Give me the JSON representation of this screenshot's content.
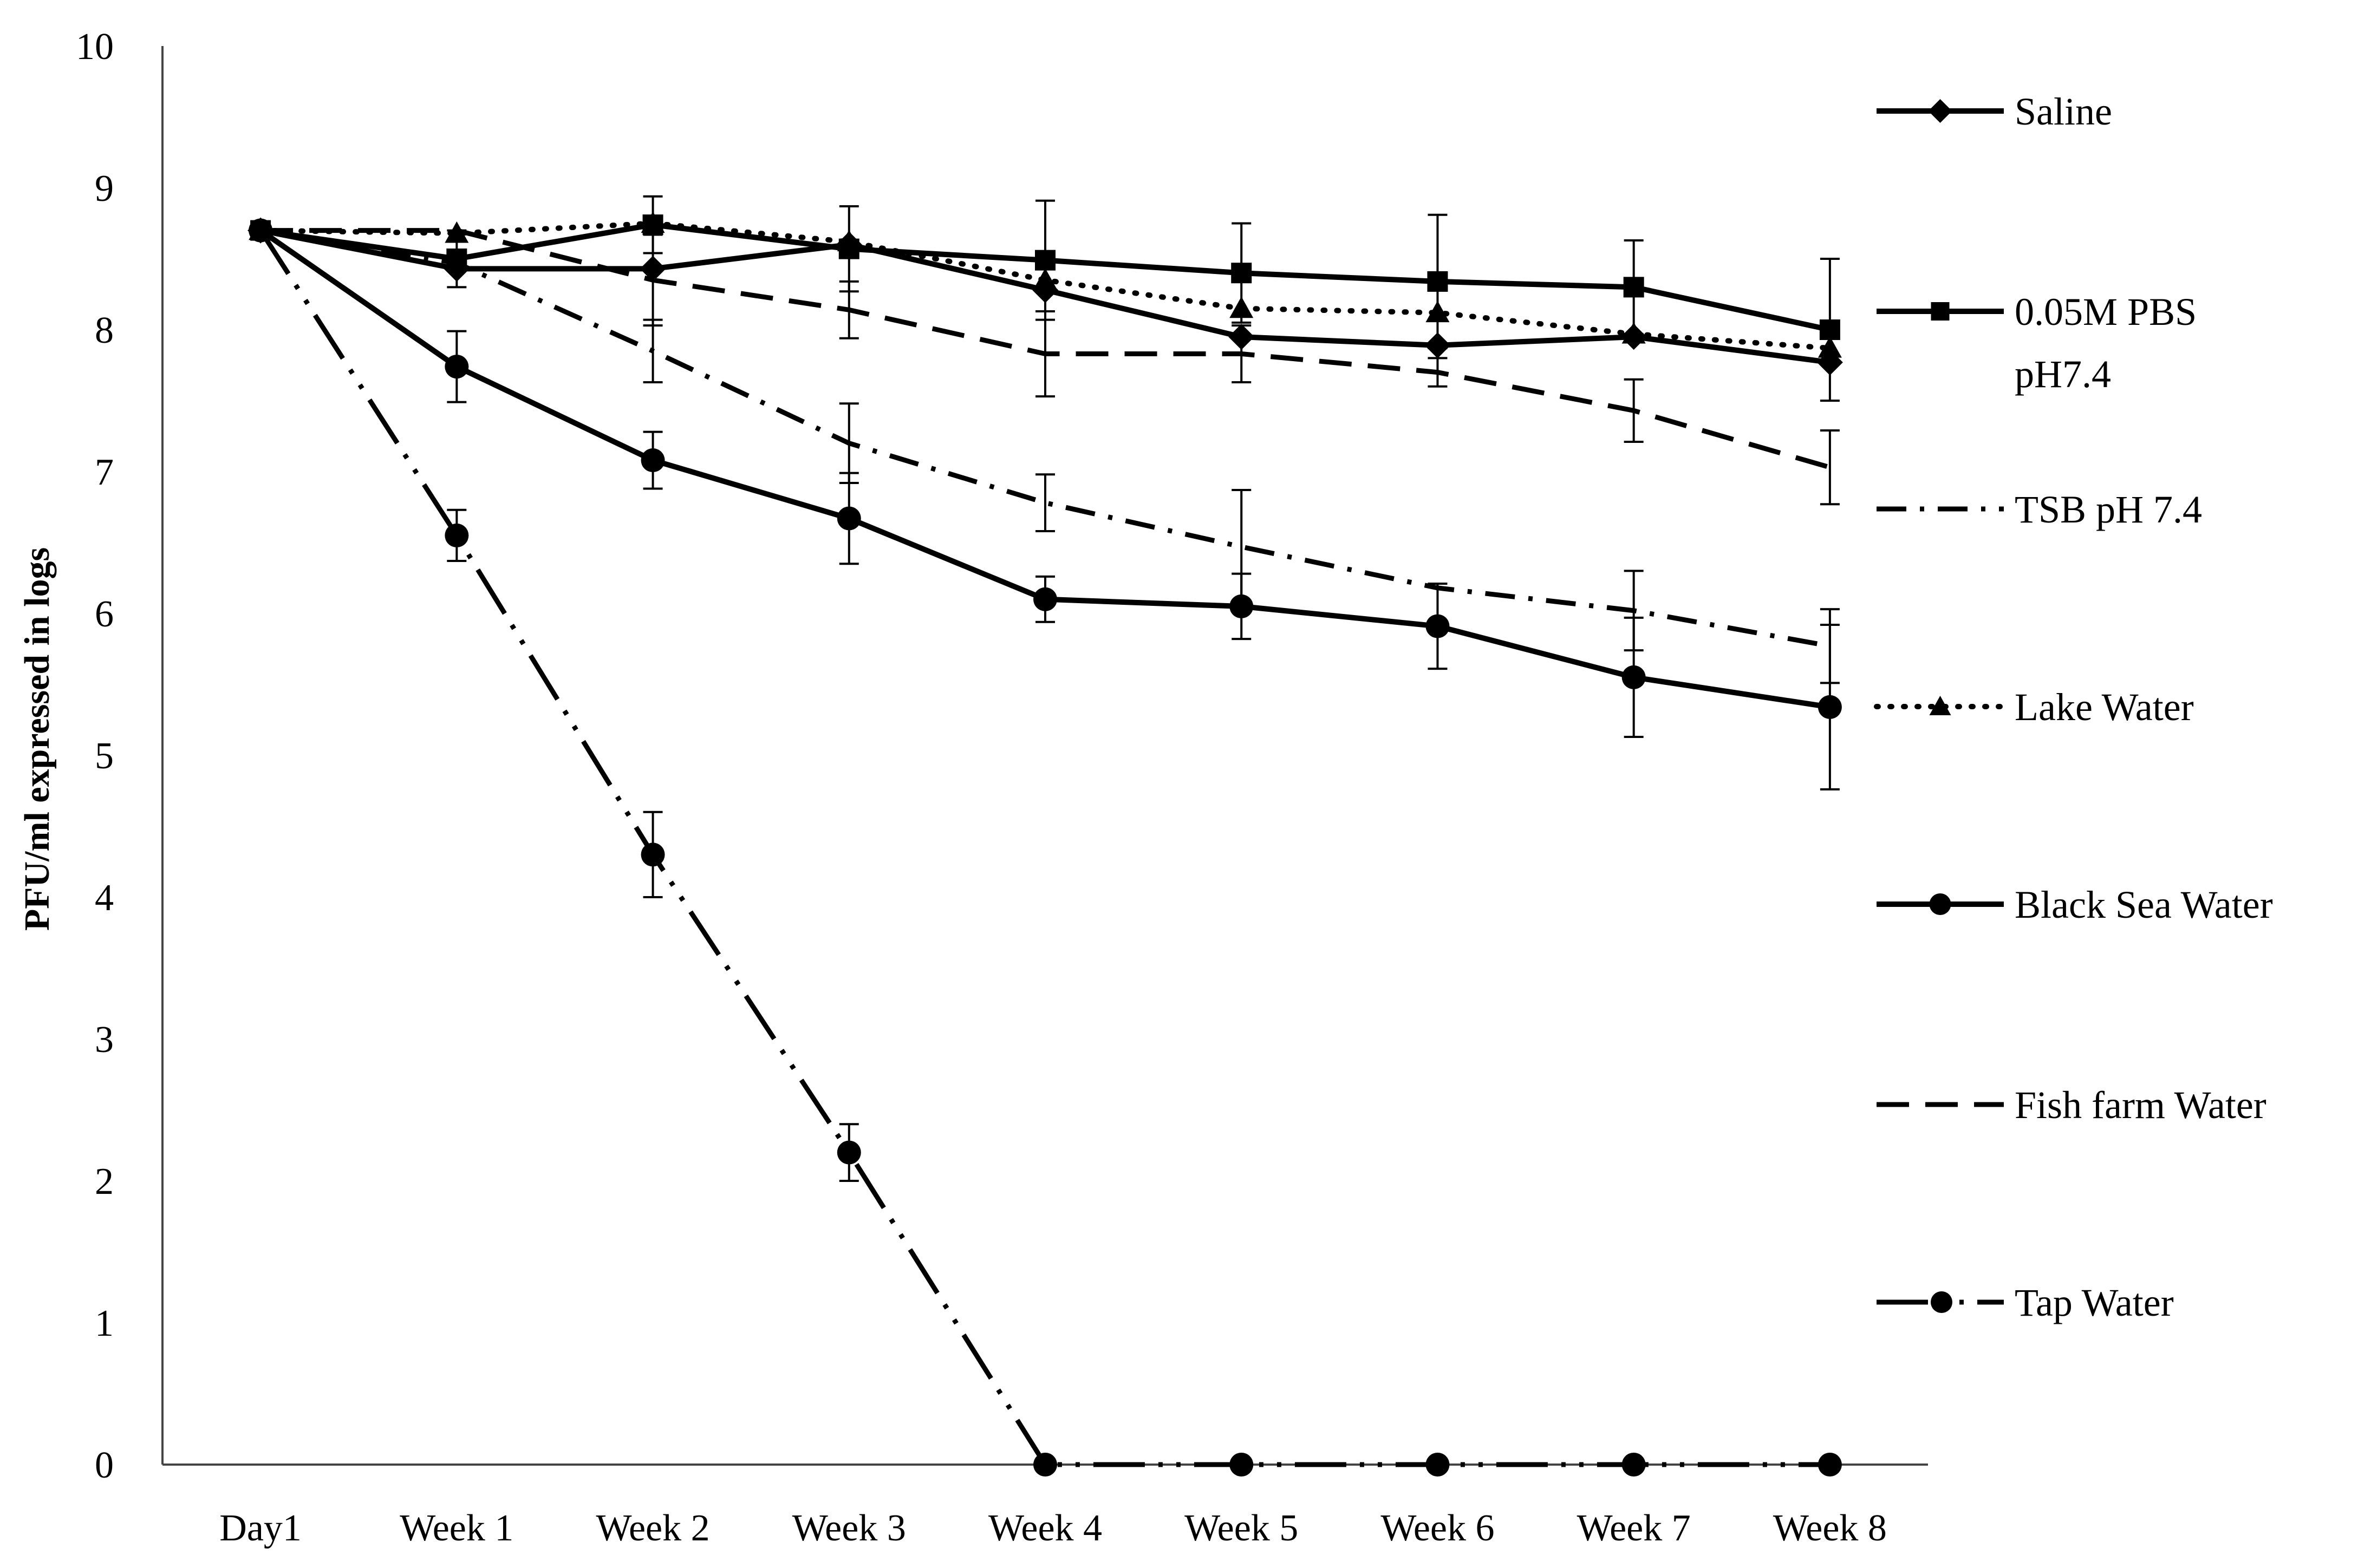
{
  "chart_data": {
    "type": "line",
    "title": "",
    "xlabel": "",
    "ylabel": "PFU/ml expressed in logs",
    "ylim": [
      0,
      10
    ],
    "yticks": [
      "0",
      "1",
      "2",
      "3",
      "4",
      "5",
      "6",
      "7",
      "8",
      "9",
      "10"
    ],
    "categories": [
      "Day1",
      "Week 1",
      "Week 2",
      "Week 3",
      "Week 4",
      "Week 5",
      "Week 6",
      "Week 7",
      "Week 8"
    ],
    "grid": false,
    "legend_position": "right",
    "series": [
      {
        "name": "Saline",
        "values": [
          8.7,
          8.43,
          8.43,
          8.6,
          8.28,
          7.95,
          7.89,
          7.95,
          7.77
        ],
        "errors": [
          0,
          0,
          0,
          0,
          0,
          0,
          0,
          0,
          0
        ],
        "line_style": "solid",
        "marker": "diamond"
      },
      {
        "name": "0.05M PBS pH7.4",
        "legend_lines": [
          "0.05M PBS",
          "pH7.4"
        ],
        "values": [
          8.7,
          8.5,
          8.74,
          8.57,
          8.49,
          8.4,
          8.34,
          8.3,
          8.0
        ],
        "errors": [
          0,
          0.2,
          0.2,
          0.3,
          0.42,
          0.35,
          0.47,
          0.33,
          0.5
        ],
        "line_style": "solid",
        "marker": "square"
      },
      {
        "name": "TSB pH 7.4",
        "values": [
          8.7,
          8.47,
          7.85,
          7.2,
          6.78,
          6.47,
          6.18,
          6.02,
          5.77
        ],
        "errors": [
          0,
          0,
          0.22,
          0.28,
          0.2,
          0.4,
          0,
          0.28,
          0.26
        ],
        "line_style": "dashdot",
        "marker": "none"
      },
      {
        "name": "Lake Water",
        "values": [
          8.7,
          8.68,
          8.75,
          8.62,
          8.35,
          8.15,
          8.12,
          7.97,
          7.87
        ],
        "errors": [
          0,
          0,
          0,
          0,
          0,
          0,
          0,
          0,
          0
        ],
        "line_style": "dotted",
        "marker": "triangle"
      },
      {
        "name": "Black Sea Water",
        "values": [
          8.7,
          7.74,
          7.08,
          6.67,
          6.1,
          6.05,
          5.91,
          5.55,
          5.34
        ],
        "errors": [
          0,
          0.25,
          0.2,
          0.32,
          0.16,
          0.23,
          0.3,
          0.42,
          0.58
        ],
        "line_style": "solid",
        "marker": "circle"
      },
      {
        "name": "Fish farm Water",
        "values": [
          8.7,
          8.7,
          8.35,
          8.14,
          7.83,
          7.83,
          7.7,
          7.43,
          7.03
        ],
        "errors": [
          0,
          0,
          0.32,
          0.2,
          0.3,
          0.2,
          0.1,
          0.22,
          0.26
        ],
        "line_style": "dashed",
        "marker": "none"
      },
      {
        "name": "Tap Water",
        "values": [
          8.7,
          6.55,
          4.3,
          2.2,
          0,
          0,
          0,
          0,
          0
        ],
        "errors": [
          0,
          0.18,
          0.3,
          0.2,
          0,
          0,
          0,
          0,
          0
        ],
        "line_style": "longdashdotdot",
        "marker": "circle"
      }
    ]
  }
}
